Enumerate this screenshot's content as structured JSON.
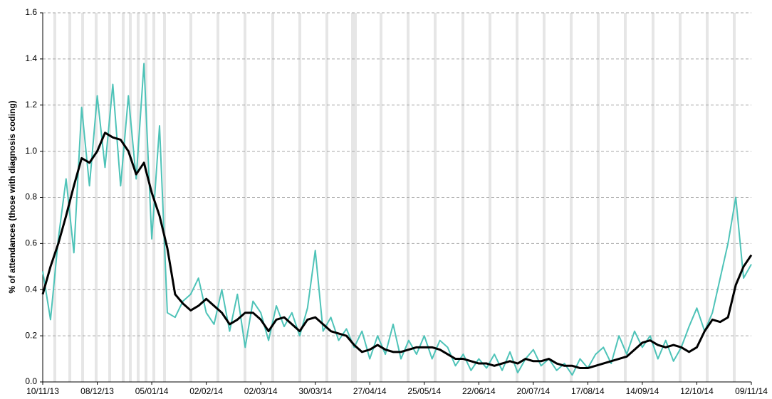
{
  "chart_data": {
    "type": "line",
    "y_label": "% of attendances (those with diagnosis coding)",
    "categories": [
      "10/11/13",
      null,
      null,
      null,
      null,
      null,
      null,
      "08/12/13",
      null,
      null,
      null,
      null,
      null,
      null,
      "05/01/14",
      null,
      null,
      null,
      null,
      null,
      null,
      "02/02/14",
      null,
      null,
      null,
      null,
      null,
      null,
      "02/03/14",
      null,
      null,
      null,
      null,
      null,
      null,
      "30/03/14",
      null,
      null,
      null,
      null,
      null,
      null,
      "27/04/14",
      null,
      null,
      null,
      null,
      null,
      null,
      "25/05/14",
      null,
      null,
      null,
      null,
      null,
      null,
      "22/06/14",
      null,
      null,
      null,
      null,
      null,
      null,
      "20/07/14",
      null,
      null,
      null,
      null,
      null,
      null,
      "17/08/14",
      null,
      null,
      null,
      null,
      null,
      null,
      "14/09/14",
      null,
      null,
      null,
      null,
      null,
      null,
      "12/10/14",
      null,
      null,
      null,
      null,
      null,
      null,
      "09/11/14"
    ],
    "series": [
      {
        "color": "#4ec3b8",
        "width": 2,
        "values": [
          0.48,
          0.27,
          0.62,
          0.88,
          0.56,
          1.19,
          0.85,
          1.24,
          0.93,
          1.29,
          0.85,
          1.24,
          0.88,
          1.38,
          0.62,
          1.11,
          0.3,
          0.28,
          0.35,
          0.38,
          0.45,
          0.3,
          0.25,
          0.4,
          0.22,
          0.38,
          0.15,
          0.35,
          0.3,
          0.18,
          0.33,
          0.24,
          0.3,
          0.2,
          0.32,
          0.57,
          0.22,
          0.28,
          0.18,
          0.23,
          0.15,
          0.22,
          0.1,
          0.2,
          0.12,
          0.25,
          0.1,
          0.18,
          0.12,
          0.2,
          0.1,
          0.18,
          0.15,
          0.07,
          0.12,
          0.05,
          0.1,
          0.06,
          0.12,
          0.05,
          0.13,
          0.04,
          0.1,
          0.14,
          0.07,
          0.1,
          0.05,
          0.08,
          0.03,
          0.1,
          0.06,
          0.12,
          0.15,
          0.08,
          0.2,
          0.12,
          0.22,
          0.15,
          0.2,
          0.1,
          0.18,
          0.09,
          0.15,
          0.24,
          0.32,
          0.22,
          0.3,
          0.45,
          0.6,
          0.8,
          0.45,
          0.51
        ]
      },
      {
        "color": "#000000",
        "width": 3,
        "values": [
          0.38,
          0.5,
          0.6,
          0.72,
          0.85,
          0.97,
          0.95,
          1.0,
          1.08,
          1.06,
          1.05,
          1.0,
          0.9,
          0.95,
          0.82,
          0.72,
          0.58,
          0.38,
          0.34,
          0.31,
          0.33,
          0.36,
          0.33,
          0.3,
          0.25,
          0.27,
          0.3,
          0.3,
          0.27,
          0.22,
          0.27,
          0.28,
          0.25,
          0.22,
          0.27,
          0.28,
          0.25,
          0.22,
          0.21,
          0.2,
          0.16,
          0.13,
          0.14,
          0.16,
          0.14,
          0.13,
          0.13,
          0.14,
          0.15,
          0.15,
          0.15,
          0.14,
          0.12,
          0.1,
          0.1,
          0.09,
          0.08,
          0.08,
          0.07,
          0.08,
          0.09,
          0.08,
          0.1,
          0.09,
          0.09,
          0.1,
          0.08,
          0.07,
          0.07,
          0.06,
          0.06,
          0.07,
          0.08,
          0.09,
          0.1,
          0.11,
          0.14,
          0.17,
          0.18,
          0.16,
          0.15,
          0.16,
          0.15,
          0.13,
          0.15,
          0.22,
          0.27,
          0.26,
          0.28,
          0.42,
          0.5,
          0.55
        ]
      }
    ],
    "ylim": [
      0,
      1.6
    ],
    "yticks": [
      {
        "value": 0,
        "label": "0.0"
      },
      0.2,
      0.4,
      0.6,
      0.8,
      {
        "value": 1,
        "label": "1.0"
      },
      1.2,
      1.4,
      1.6
    ],
    "grid": true
  }
}
